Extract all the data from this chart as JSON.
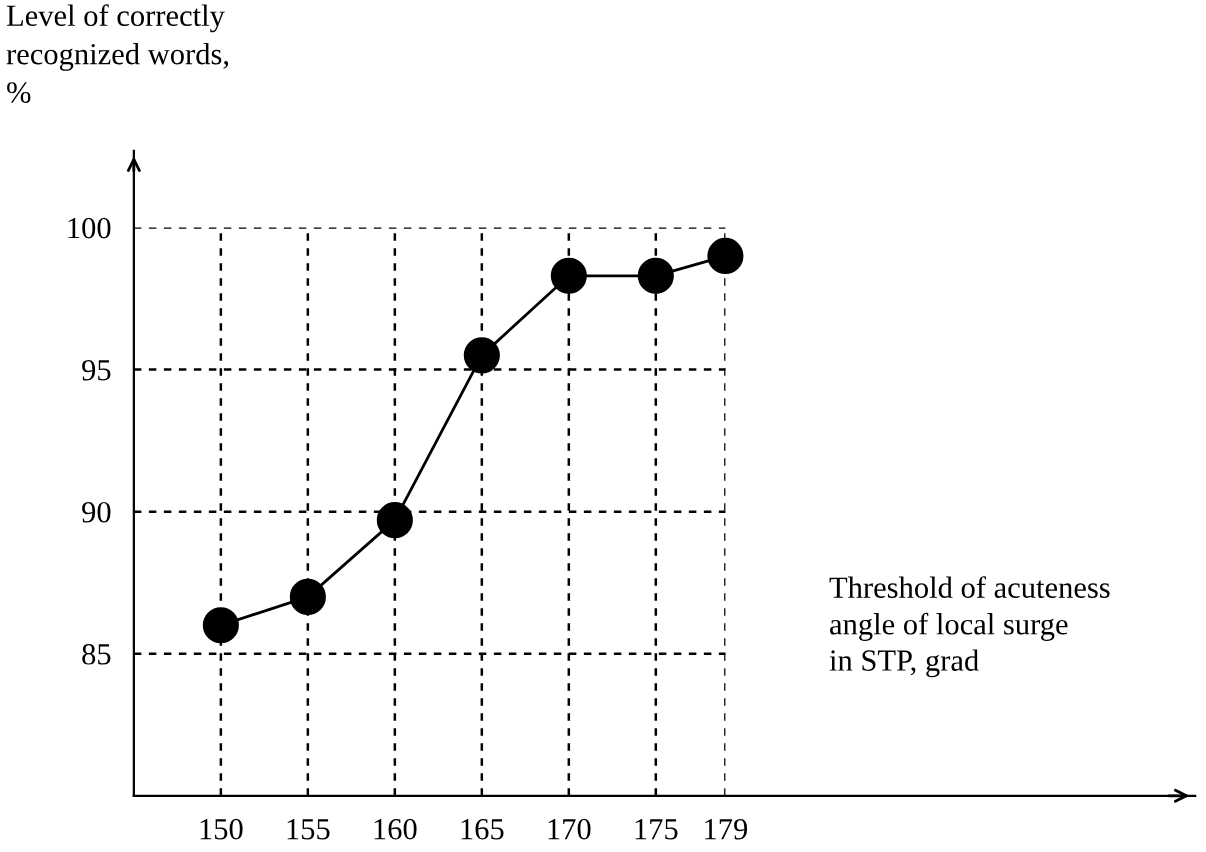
{
  "chart_data": {
    "type": "line",
    "x": [
      150,
      155,
      160,
      165,
      170,
      175,
      179
    ],
    "series": [
      {
        "color": "#000000",
        "values": [
          86,
          87,
          89.7,
          95.5,
          98.3,
          98.3,
          99.0
        ]
      }
    ],
    "ylabel": "Level of correctly\nrecognized words,\n%",
    "xlabel": "Threshold of acuteness\nangle of local surge\nin STP, grad",
    "xlim": [
      145,
      206
    ],
    "ylim": [
      80,
      102.7
    ],
    "xticks": [
      150,
      155,
      160,
      165,
      170,
      175,
      179
    ],
    "yticks": [
      85,
      90,
      95,
      100
    ],
    "grid": true,
    "marker": "circle",
    "line_style": "solid"
  }
}
